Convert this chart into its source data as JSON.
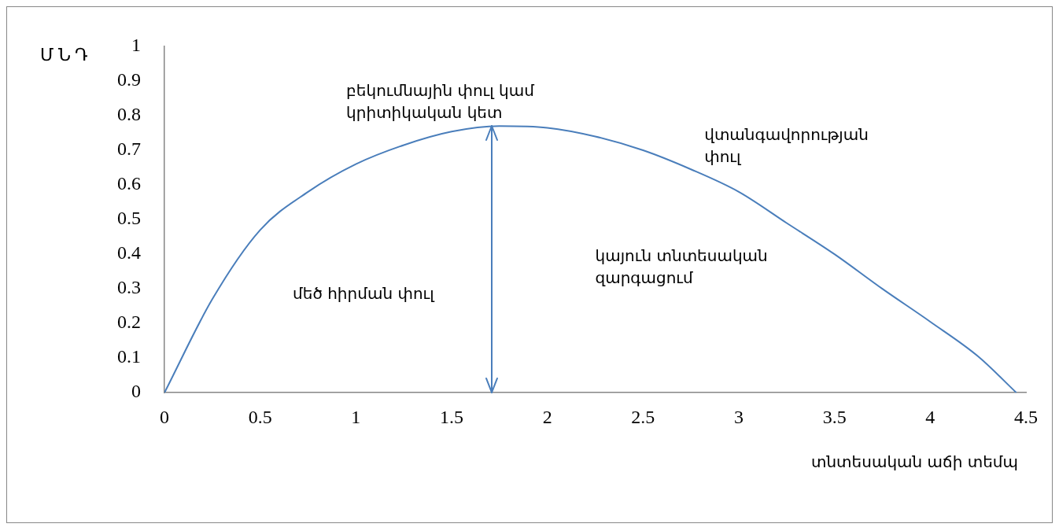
{
  "chart_data": {
    "type": "line",
    "xlabel": "տնտեսական աճի տեմպ",
    "ylabel": "Մ Ն Դ",
    "xlim": [
      0,
      4.5
    ],
    "xticks": [
      0,
      0.5,
      1,
      1.5,
      2,
      2.5,
      3,
      3.5,
      4,
      4.5
    ],
    "ylim": [
      0,
      1
    ],
    "yticks": [
      0,
      0.1,
      0.2,
      0.3,
      0.4,
      0.5,
      0.6,
      0.7,
      0.8,
      0.9,
      1
    ],
    "x": [
      0,
      0.25,
      0.5,
      0.75,
      1,
      1.25,
      1.5,
      1.75,
      2,
      2.25,
      2.5,
      2.75,
      3,
      3.25,
      3.5,
      3.75,
      4,
      4.25,
      4.45
    ],
    "series": [
      {
        "color": "#4a7ebb",
        "values": [
          0,
          0.27,
          0.47,
          0.58,
          0.66,
          0.715,
          0.754,
          0.77,
          0.765,
          0.74,
          0.7,
          0.645,
          0.58,
          0.49,
          0.4,
          0.3,
          0.205,
          0.105,
          0
        ]
      }
    ],
    "legend": false,
    "annotations": [
      {
        "text": "բեկումնային փուլ կամ\nկրիտիկական կետ",
        "x": 1.71,
        "y": 0.77
      },
      "մեծ հիրման փուլ",
      "կայուն տնտեսական\nզարգացում",
      "վտանգավորության\nփուլ"
    ]
  }
}
